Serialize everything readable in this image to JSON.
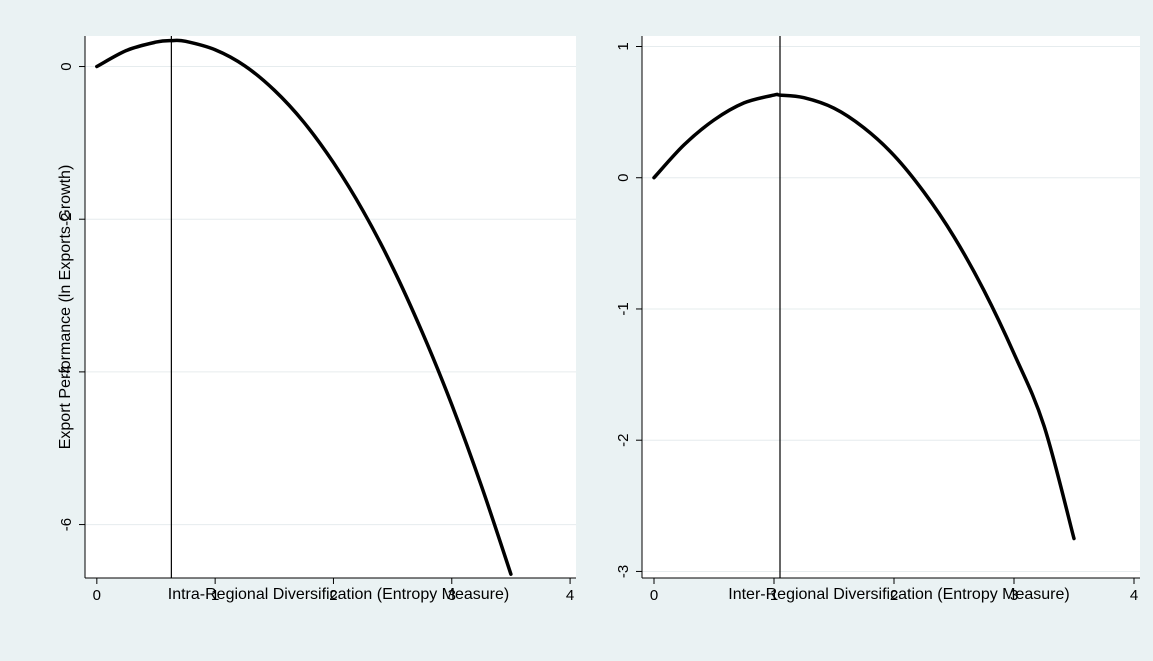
{
  "chart_data": [
    {
      "type": "line",
      "title": "",
      "xlabel": "Intra-Regional Diversification (Entropy Measure)",
      "ylabel": "Export Performance (ln Exports Growth)",
      "xlim": [
        -0.1,
        4.05
      ],
      "ylim": [
        -6.7,
        0.4
      ],
      "x_ticks": [
        0,
        1,
        2,
        3,
        4
      ],
      "y_ticks": [
        0,
        -2,
        -4,
        -6
      ],
      "grid": "horizontal",
      "legend": "none",
      "vline_x": 0.63,
      "series": [
        {
          "color": "#000000",
          "x": [
            0,
            0.25,
            0.5,
            0.63,
            0.75,
            1.0,
            1.25,
            1.5,
            1.75,
            2.0,
            2.25,
            2.5,
            2.75,
            3.0,
            3.25,
            3.5
          ],
          "y": [
            0,
            0.21,
            0.32,
            0.34,
            0.33,
            0.22,
            0.01,
            -0.31,
            -0.73,
            -1.26,
            -1.89,
            -2.63,
            -3.48,
            -4.43,
            -5.49,
            -6.65
          ]
        }
      ]
    },
    {
      "type": "line",
      "title": "",
      "xlabel": "Inter-Regional Diversification (Entropy Measure)",
      "ylabel": "",
      "xlim": [
        -0.1,
        4.05
      ],
      "ylim": [
        -3.05,
        1.08
      ],
      "x_ticks": [
        0,
        1,
        2,
        3,
        4
      ],
      "y_ticks": [
        1,
        0,
        -1,
        -2,
        -3
      ],
      "grid": "horizontal",
      "legend": "none",
      "vline_x": 1.05,
      "series": [
        {
          "color": "#000000",
          "x": [
            0,
            0.25,
            0.5,
            0.75,
            1.0,
            1.05,
            1.25,
            1.5,
            1.75,
            2.0,
            2.25,
            2.5,
            2.75,
            3.0,
            3.25,
            3.5
          ],
          "y": [
            0,
            0.25,
            0.44,
            0.57,
            0.63,
            0.63,
            0.61,
            0.53,
            0.38,
            0.17,
            -0.11,
            -0.45,
            -0.86,
            -1.34,
            -1.89,
            -2.75
          ]
        }
      ]
    }
  ]
}
